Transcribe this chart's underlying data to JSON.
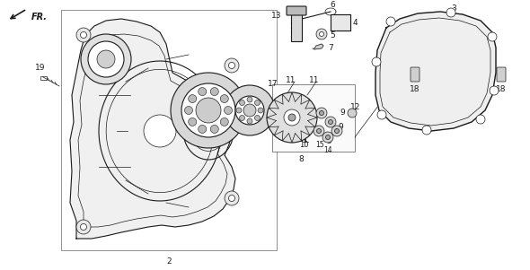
{
  "bg_color": "#ffffff",
  "line_color": "#1a1a1a",
  "fig_width": 5.9,
  "fig_height": 3.01,
  "dpi": 100
}
